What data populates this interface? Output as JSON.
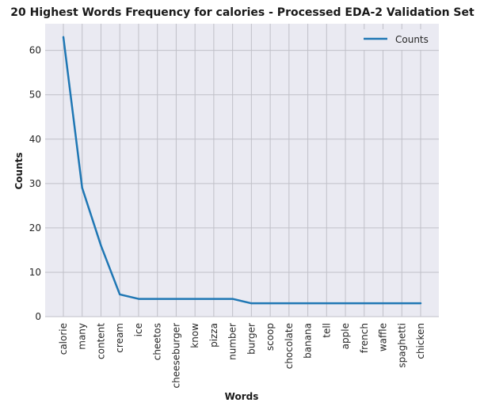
{
  "chart_data": {
    "type": "line",
    "title": "20 Highest Words Frequency for calories - Processed EDA-2 Validation Set",
    "xlabel": "Words",
    "ylabel": "Counts",
    "categories": [
      "calorie",
      "many",
      "content",
      "cream",
      "ice",
      "cheetos",
      "cheeseburger",
      "know",
      "pizza",
      "number",
      "burger",
      "scoop",
      "chocolate",
      "banana",
      "tell",
      "apple",
      "french",
      "waffle",
      "spaghetti",
      "chicken"
    ],
    "series": [
      {
        "name": "Counts",
        "values": [
          63,
          29,
          16,
          5,
          4,
          4,
          4,
          4,
          4,
          4,
          3,
          3,
          3,
          3,
          3,
          3,
          3,
          3,
          3,
          3
        ],
        "color": "#1f77b4"
      }
    ],
    "ylim": [
      0,
      66
    ],
    "yticks": [
      0,
      10,
      20,
      30,
      40,
      50,
      60
    ],
    "grid": true,
    "legend_position": "top-right",
    "background": "#eaeaf2",
    "grid_color": "#c0c0c8"
  }
}
